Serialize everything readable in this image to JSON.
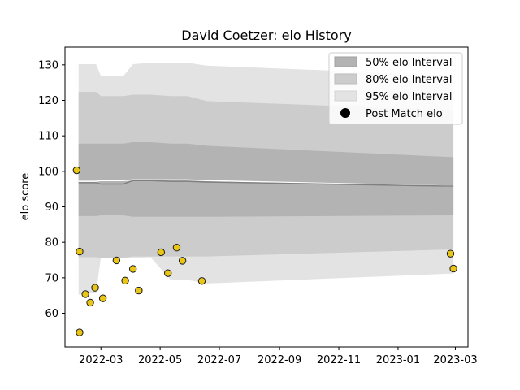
{
  "chart_data": {
    "type": "area",
    "title": "David Coetzer: elo History",
    "xlabel": "",
    "ylabel": "elo score",
    "xlim": [
      "2022-01-23",
      "2023-03-14"
    ],
    "ylim": [
      50.5,
      135
    ],
    "x_ticks": [
      "2022-03",
      "2022-05",
      "2022-07",
      "2022-09",
      "2022-11",
      "2023-01",
      "2023-03"
    ],
    "y_ticks": [
      60,
      70,
      80,
      90,
      100,
      110,
      120,
      130
    ],
    "legend_position": "top-right",
    "legend": [
      "50% elo Interval",
      "80% elo Interval",
      "95% elo Interval",
      "Post Match elo"
    ],
    "colors": {
      "band50": "#b3b3b3",
      "band80": "#cccccc",
      "band95": "#e3e3e3",
      "median_line": "#808080",
      "mean_line": "#ffffff",
      "point_fill": "#e8c516",
      "point_edge": "#1a1a1a"
    },
    "bands": {
      "dates": [
        "2022-02-06",
        "2022-02-24",
        "2022-03-01",
        "2022-03-24",
        "2022-04-03",
        "2022-04-21",
        "2022-05-12",
        "2022-05-29",
        "2022-06-18",
        "2023-02-27"
      ],
      "p95_low": [
        65.2,
        65.8,
        75.8,
        75.6,
        75.6,
        75.8,
        69.4,
        69.4,
        68.4,
        71.2
      ],
      "p95_high": [
        130.2,
        130.2,
        126.8,
        126.8,
        130.2,
        130.6,
        130.6,
        130.6,
        129.8,
        127.0
      ],
      "p80_low": [
        75.8,
        75.8,
        75.6,
        75.6,
        76.0,
        76.0,
        76.0,
        76.0,
        76.0,
        78.0
      ],
      "p80_high": [
        122.4,
        122.4,
        121.2,
        121.2,
        121.6,
        121.6,
        121.2,
        121.2,
        119.8,
        117.2
      ],
      "p50_low": [
        87.4,
        87.4,
        87.6,
        87.6,
        87.2,
        87.2,
        87.2,
        87.2,
        87.2,
        87.6
      ],
      "p50_high": [
        107.8,
        107.8,
        107.8,
        107.8,
        108.2,
        108.2,
        107.8,
        107.8,
        107.2,
        104.0
      ],
      "median": [
        96.8,
        96.8,
        96.4,
        96.4,
        97.4,
        97.4,
        97.2,
        97.2,
        97.0,
        95.8
      ],
      "mean": [
        97.2,
        97.2,
        97.4,
        97.4,
        97.6,
        97.6,
        97.6,
        97.6,
        97.4,
        95.8
      ]
    },
    "points": [
      {
        "x": "2022-02-04",
        "y": 100.3
      },
      {
        "x": "2022-02-07",
        "y": 77.4
      },
      {
        "x": "2022-02-07",
        "y": 54.6
      },
      {
        "x": "2022-02-13",
        "y": 65.4
      },
      {
        "x": "2022-02-18",
        "y": 63.0
      },
      {
        "x": "2022-02-23",
        "y": 67.2
      },
      {
        "x": "2022-03-03",
        "y": 64.2
      },
      {
        "x": "2022-03-17",
        "y": 74.9
      },
      {
        "x": "2022-03-26",
        "y": 69.2
      },
      {
        "x": "2022-04-03",
        "y": 72.5
      },
      {
        "x": "2022-04-09",
        "y": 66.4
      },
      {
        "x": "2022-05-02",
        "y": 77.2
      },
      {
        "x": "2022-05-09",
        "y": 71.3
      },
      {
        "x": "2022-05-18",
        "y": 78.5
      },
      {
        "x": "2022-05-24",
        "y": 74.8
      },
      {
        "x": "2022-06-13",
        "y": 69.1
      },
      {
        "x": "2023-02-24",
        "y": 76.8
      },
      {
        "x": "2023-02-27",
        "y": 72.6
      }
    ]
  }
}
